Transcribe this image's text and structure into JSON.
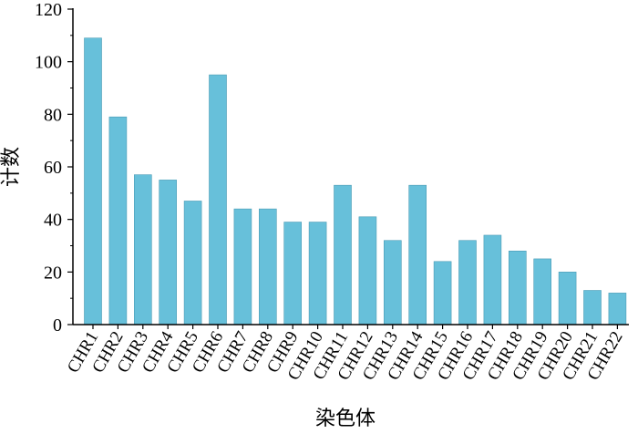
{
  "chart_data": {
    "type": "bar",
    "title": "",
    "xlabel": "染色体",
    "ylabel": "计数",
    "ylim": [
      0,
      120
    ],
    "yticks": [
      "0",
      "20",
      "40",
      "60",
      "80",
      "100",
      "120"
    ],
    "grid": false,
    "legend": "none",
    "bar_color": "#67C0DA",
    "categories": [
      "CHR1",
      "CHR2",
      "CHR3",
      "CHR4",
      "CHR5",
      "CHR6",
      "CHR7",
      "CHR8",
      "CHR9",
      "CHR10",
      "CHR11",
      "CHR12",
      "CHR13",
      "CHR14",
      "CHR15",
      "CHR16",
      "CHR17",
      "CHR18",
      "CHR19",
      "CHR20",
      "CHR21",
      "CHR22"
    ],
    "values": [
      109,
      79,
      57,
      55,
      47,
      95,
      44,
      44,
      39,
      39,
      53,
      41,
      32,
      53,
      24,
      32,
      34,
      28,
      25,
      20,
      13,
      12
    ]
  }
}
